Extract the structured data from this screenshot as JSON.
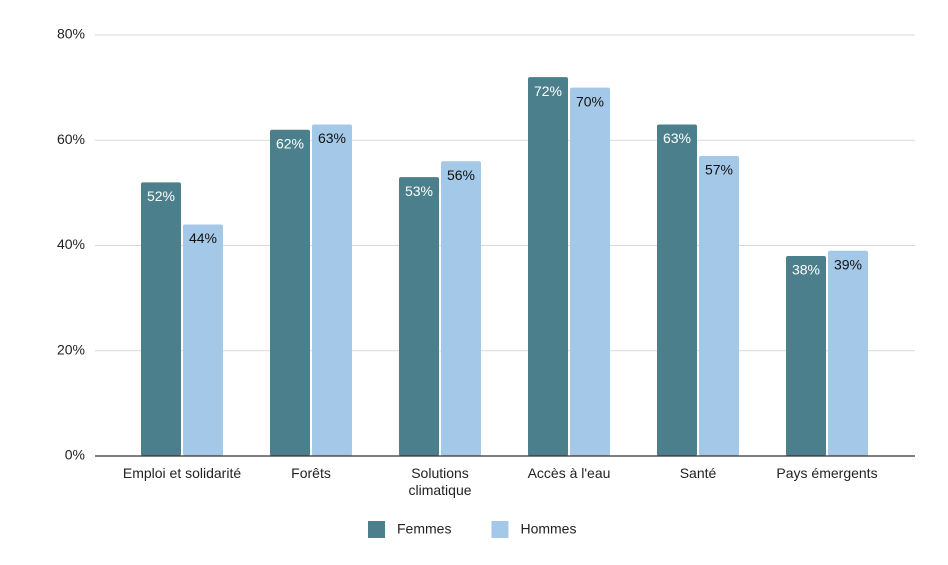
{
  "chart_data": {
    "type": "bar",
    "categories": [
      "Emploi et solidarité",
      "Forêts",
      "Solutions climatique",
      "Accès à l'eau",
      "Santé",
      "Pays émergents"
    ],
    "series": [
      {
        "name": "Femmes",
        "color": "#4a7f8b",
        "values": [
          52,
          62,
          53,
          72,
          63,
          38
        ],
        "value_labels": [
          "52%",
          "62%",
          "53%",
          "72%",
          "63%",
          "38%"
        ]
      },
      {
        "name": "Hommes",
        "color": "#a4c8e8",
        "values": [
          44,
          63,
          56,
          70,
          57,
          39
        ],
        "value_labels": [
          "44%",
          "63%",
          "56%",
          "70%",
          "57%",
          "39%"
        ]
      }
    ],
    "ylim": [
      0,
      80
    ],
    "yticks": [
      {
        "value": 0,
        "label": "0%"
      },
      {
        "value": 20,
        "label": "20%"
      },
      {
        "value": 40,
        "label": "40%"
      },
      {
        "value": 60,
        "label": "60%"
      },
      {
        "value": 80,
        "label": "80%"
      }
    ],
    "grid": true,
    "legend": "bottom"
  }
}
